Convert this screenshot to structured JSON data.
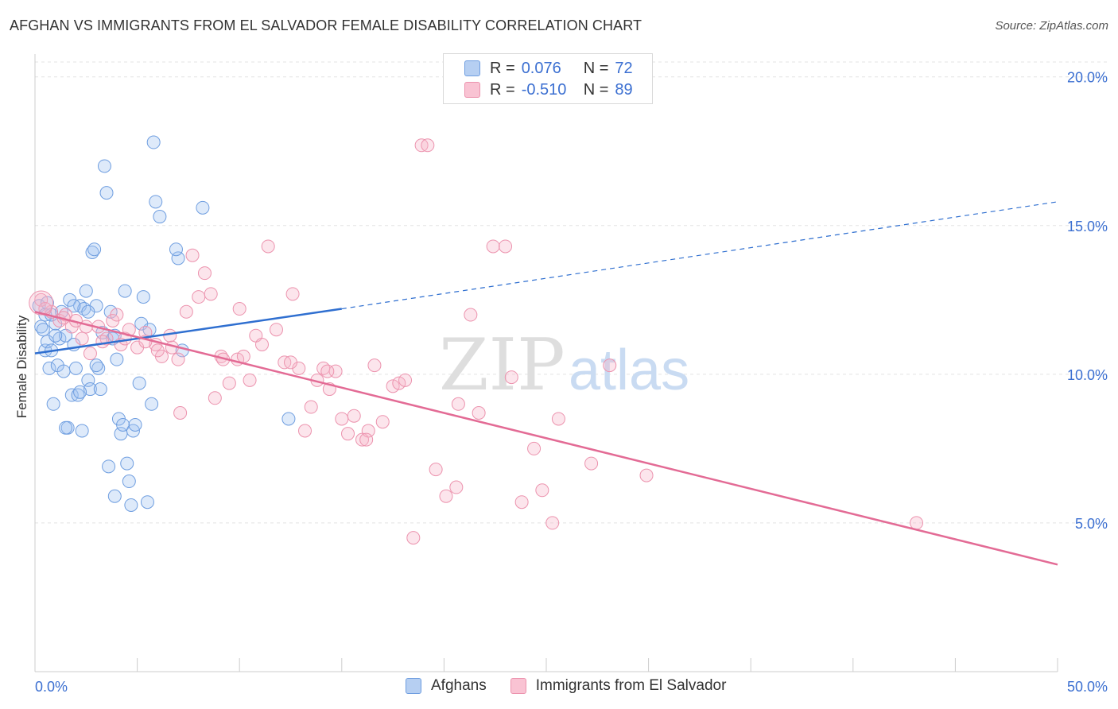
{
  "header": {
    "title": "AFGHAN VS IMMIGRANTS FROM EL SALVADOR FEMALE DISABILITY CORRELATION CHART",
    "source": "Source: ZipAtlas.com"
  },
  "watermark": {
    "zip": "ZIP",
    "atlas": "atlas"
  },
  "legend": {
    "r_label": "R =",
    "n_label": "N =",
    "rows": [
      {
        "r": "0.076",
        "n": "72",
        "fill": "#b6cff2",
        "stroke": "#6f9ee0"
      },
      {
        "r": "-0.510",
        "n": "89",
        "fill": "#f9c3d3",
        "stroke": "#ec93ae"
      }
    ]
  },
  "bottom_legend": [
    "Afghans",
    "Immigrants from El Salvador"
  ],
  "colors": {
    "blue_point_fill": "rgba(160,195,240,0.35)",
    "blue_point_stroke": "#6f9ee0",
    "pink_point_fill": "rgba(246,180,200,0.35)",
    "pink_point_stroke": "#ec93ae",
    "blue_line": "#2f6fd0",
    "pink_line": "#e36b95",
    "axis_label": "#3b6fd1",
    "grid": "#e3e3e3"
  },
  "chart_data": {
    "type": "scatter",
    "title": "AFGHAN VS IMMIGRANTS FROM EL SALVADOR FEMALE DISABILITY CORRELATION CHART",
    "xlabel": "",
    "ylabel": "Female Disability",
    "xlim": [
      0,
      50
    ],
    "ylim": [
      0,
      20.5
    ],
    "x_tick_labels": [
      "0.0%",
      "50.0%"
    ],
    "y_ticks": [
      5,
      10,
      15,
      20
    ],
    "y_tick_labels": [
      "5.0%",
      "10.0%",
      "15.0%",
      "20.0%"
    ],
    "grid": true,
    "legend_position": "top-center",
    "series": [
      {
        "name": "Afghans",
        "points": [
          [
            0.2,
            12.3
          ],
          [
            0.3,
            11.6
          ],
          [
            0.5,
            12.0
          ],
          [
            0.5,
            10.8
          ],
          [
            0.6,
            11.1
          ],
          [
            0.7,
            10.2
          ],
          [
            0.8,
            10.8
          ],
          [
            0.9,
            9.0
          ],
          [
            1.0,
            11.7
          ],
          [
            1.1,
            10.3
          ],
          [
            1.2,
            11.2
          ],
          [
            1.3,
            12.1
          ],
          [
            1.4,
            10.1
          ],
          [
            1.5,
            11.3
          ],
          [
            1.6,
            8.2
          ],
          [
            1.7,
            12.5
          ],
          [
            1.8,
            9.3
          ],
          [
            1.9,
            11.0
          ],
          [
            2.0,
            10.2
          ],
          [
            2.1,
            9.3
          ],
          [
            2.2,
            12.3
          ],
          [
            2.3,
            8.1
          ],
          [
            2.4,
            12.2
          ],
          [
            2.5,
            12.8
          ],
          [
            2.6,
            9.8
          ],
          [
            2.7,
            9.5
          ],
          [
            2.8,
            14.1
          ],
          [
            2.9,
            14.2
          ],
          [
            3.0,
            12.3
          ],
          [
            3.1,
            10.2
          ],
          [
            3.2,
            9.5
          ],
          [
            3.3,
            11.4
          ],
          [
            3.4,
            17.0
          ],
          [
            3.5,
            16.1
          ],
          [
            3.6,
            6.9
          ],
          [
            3.7,
            12.1
          ],
          [
            3.8,
            11.2
          ],
          [
            3.9,
            5.9
          ],
          [
            4.0,
            10.5
          ],
          [
            4.1,
            8.5
          ],
          [
            4.2,
            8.0
          ],
          [
            4.3,
            8.3
          ],
          [
            4.4,
            12.8
          ],
          [
            4.5,
            7.0
          ],
          [
            4.6,
            6.4
          ],
          [
            4.7,
            5.6
          ],
          [
            4.8,
            8.1
          ],
          [
            4.9,
            8.3
          ],
          [
            5.1,
            9.7
          ],
          [
            5.2,
            11.7
          ],
          [
            5.3,
            12.6
          ],
          [
            5.5,
            5.7
          ],
          [
            5.7,
            9.0
          ],
          [
            5.8,
            17.8
          ],
          [
            5.9,
            15.8
          ],
          [
            6.1,
            15.3
          ],
          [
            5.6,
            11.5
          ],
          [
            3.0,
            10.3
          ],
          [
            2.2,
            9.4
          ],
          [
            1.5,
            8.2
          ],
          [
            7.0,
            13.9
          ],
          [
            7.2,
            10.8
          ],
          [
            8.2,
            15.6
          ],
          [
            0.8,
            12.0
          ],
          [
            1.0,
            11.3
          ],
          [
            0.4,
            11.5
          ],
          [
            1.9,
            12.3
          ],
          [
            2.6,
            12.1
          ],
          [
            0.6,
            12.4
          ],
          [
            12.4,
            8.5
          ],
          [
            6.9,
            14.2
          ],
          [
            3.9,
            11.3
          ]
        ]
      },
      {
        "name": "Immigrants from El Salvador",
        "points": [
          [
            0.3,
            12.5
          ],
          [
            0.8,
            12.1
          ],
          [
            1.2,
            11.8
          ],
          [
            1.5,
            12.0
          ],
          [
            1.8,
            11.6
          ],
          [
            2.0,
            11.8
          ],
          [
            2.3,
            11.2
          ],
          [
            2.7,
            10.7
          ],
          [
            3.1,
            11.6
          ],
          [
            3.5,
            11.2
          ],
          [
            3.8,
            11.8
          ],
          [
            4.2,
            11.0
          ],
          [
            4.4,
            11.2
          ],
          [
            4.6,
            11.5
          ],
          [
            5.0,
            10.9
          ],
          [
            5.4,
            11.4
          ],
          [
            5.9,
            11.0
          ],
          [
            6.2,
            10.6
          ],
          [
            6.6,
            11.3
          ],
          [
            7.0,
            10.5
          ],
          [
            7.4,
            12.1
          ],
          [
            7.7,
            14.0
          ],
          [
            8.0,
            12.6
          ],
          [
            8.3,
            13.4
          ],
          [
            8.6,
            12.7
          ],
          [
            8.8,
            9.2
          ],
          [
            9.1,
            10.6
          ],
          [
            9.5,
            9.7
          ],
          [
            9.9,
            10.5
          ],
          [
            10.2,
            10.6
          ],
          [
            10.5,
            9.8
          ],
          [
            10.8,
            11.3
          ],
          [
            11.1,
            11.0
          ],
          [
            11.4,
            14.3
          ],
          [
            11.8,
            11.5
          ],
          [
            12.2,
            10.4
          ],
          [
            12.6,
            12.7
          ],
          [
            12.9,
            10.2
          ],
          [
            13.2,
            8.1
          ],
          [
            13.5,
            8.9
          ],
          [
            13.8,
            9.8
          ],
          [
            14.1,
            10.2
          ],
          [
            14.4,
            9.5
          ],
          [
            14.7,
            10.1
          ],
          [
            15.0,
            8.5
          ],
          [
            15.3,
            8.0
          ],
          [
            15.6,
            8.6
          ],
          [
            16.0,
            7.8
          ],
          [
            16.3,
            8.1
          ],
          [
            16.6,
            10.3
          ],
          [
            17.0,
            8.4
          ],
          [
            17.5,
            9.6
          ],
          [
            17.8,
            9.7
          ],
          [
            18.1,
            9.8
          ],
          [
            18.5,
            4.5
          ],
          [
            18.9,
            17.7
          ],
          [
            19.2,
            17.7
          ],
          [
            19.6,
            6.8
          ],
          [
            20.1,
            5.9
          ],
          [
            20.6,
            6.2
          ],
          [
            21.3,
            12.0
          ],
          [
            21.7,
            8.7
          ],
          [
            22.4,
            14.3
          ],
          [
            23.0,
            14.3
          ],
          [
            23.3,
            9.9
          ],
          [
            23.8,
            5.7
          ],
          [
            24.4,
            7.5
          ],
          [
            24.8,
            6.1
          ],
          [
            25.3,
            5.0
          ],
          [
            25.6,
            8.5
          ],
          [
            27.2,
            7.0
          ],
          [
            28.1,
            10.3
          ],
          [
            29.9,
            6.6
          ],
          [
            43.1,
            5.0
          ],
          [
            6.0,
            10.8
          ],
          [
            7.1,
            8.7
          ],
          [
            9.2,
            10.5
          ],
          [
            10.0,
            12.2
          ],
          [
            2.5,
            11.6
          ],
          [
            4.0,
            12.0
          ],
          [
            5.4,
            11.1
          ],
          [
            0.5,
            12.2
          ],
          [
            1.4,
            11.9
          ],
          [
            3.3,
            11.1
          ],
          [
            6.7,
            10.9
          ],
          [
            12.5,
            10.4
          ],
          [
            14.3,
            10.1
          ],
          [
            16.2,
            7.8
          ],
          [
            20.7,
            9.0
          ]
        ]
      }
    ],
    "trend_lines": [
      {
        "series": "Afghans",
        "solid": [
          [
            0,
            10.7
          ],
          [
            15,
            12.2
          ]
        ],
        "dashed": [
          [
            15,
            12.2
          ],
          [
            50,
            15.8
          ]
        ]
      },
      {
        "series": "Immigrants from El Salvador",
        "solid": [
          [
            0,
            12.1
          ],
          [
            50,
            3.6
          ]
        ]
      }
    ]
  }
}
